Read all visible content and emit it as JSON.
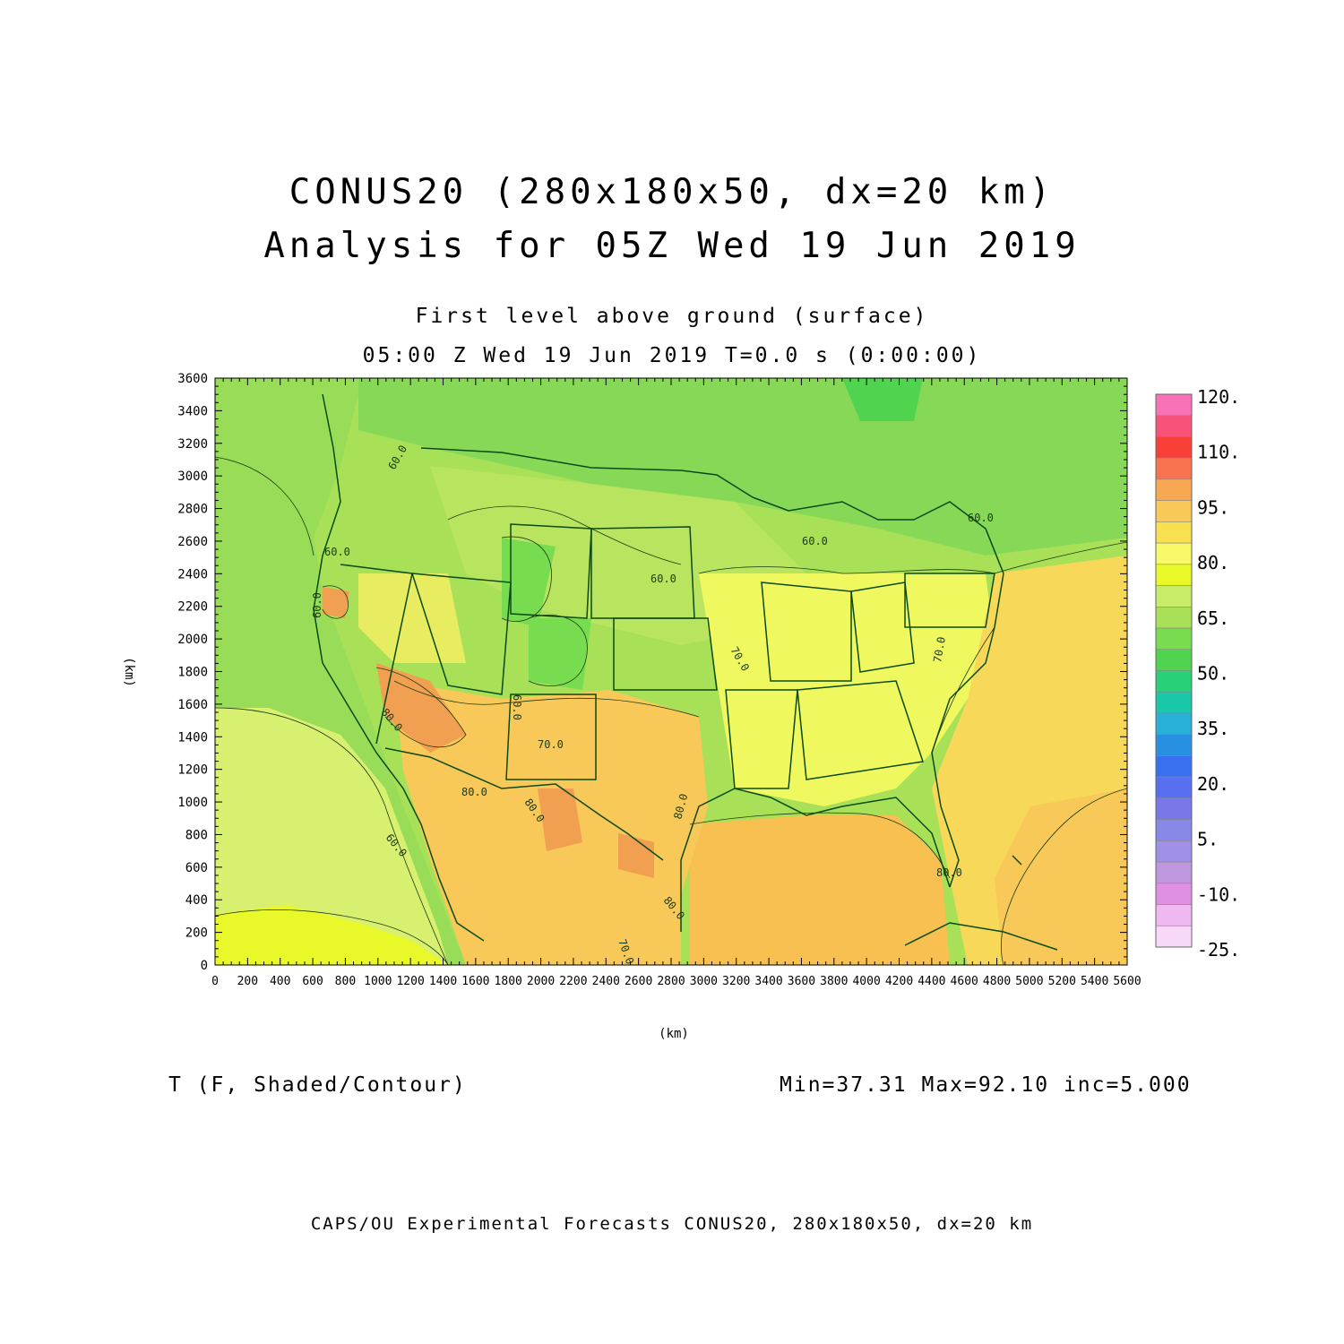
{
  "titles": {
    "line1": "CONUS20 (280x180x50, dx=20 km)",
    "line2": "Analysis for 05Z Wed 19 Jun 2019",
    "sub1": "First level above ground (surface)",
    "sub2": "05:00 Z Wed 19 Jun 2019    T=0.0 s (0:00:00)"
  },
  "variable_label": "T (F, Shaded/Contour)",
  "stats": "Min=37.31 Max=92.10 inc=5.000",
  "footer": "CAPS/OU Experimental Forecasts  CONUS20, 280x180x50, dx=20 km",
  "chart_data": {
    "type": "heatmap",
    "xlabel": "(km)",
    "ylabel": "(km)",
    "xlim": [
      0,
      5600
    ],
    "ylim": [
      0,
      3600
    ],
    "x_ticks": [
      "0",
      "200",
      "400",
      "600",
      "800",
      "1000",
      "1200",
      "1400",
      "1600",
      "1800",
      "2000",
      "2200",
      "2400",
      "2600",
      "2800",
      "3000",
      "3200",
      "3400",
      "3600",
      "3800",
      "4000",
      "4200",
      "4400",
      "4600",
      "4800",
      "5000",
      "5200",
      "5400",
      "5600"
    ],
    "y_ticks": [
      "0",
      "200",
      "400",
      "600",
      "800",
      "1000",
      "1200",
      "1400",
      "1600",
      "1800",
      "2000",
      "2200",
      "2400",
      "2600",
      "2800",
      "3000",
      "3200",
      "3400",
      "3600"
    ],
    "colorbar": {
      "labels": [
        "120.",
        "110.",
        "95.",
        "80.",
        "65.",
        "50.",
        "35.",
        "20.",
        "5.",
        "-10.",
        "-25."
      ],
      "colors": [
        "#f872b8",
        "#f8527a",
        "#f84038",
        "#f87250",
        "#f8a850",
        "#f8c858",
        "#f8e050",
        "#f8f868",
        "#e8f828",
        "#c8ec68",
        "#a8e058",
        "#78dc50",
        "#50d450",
        "#28d078",
        "#18c8a8",
        "#28b0d8",
        "#2890e0",
        "#3870f0",
        "#5870f0",
        "#7878e8",
        "#8888e8",
        "#a090e8",
        "#c098e0",
        "#e090e0",
        "#f0b8f0",
        "#f8d8f8"
      ]
    },
    "contour_labels": [
      "60.0",
      "60.0",
      "60.0",
      "60.0",
      "60.0",
      "60.0",
      "70.0",
      "70.0",
      "70.0",
      "70.0",
      "80.0",
      "80.0",
      "80.0",
      "80.0",
      "80.0",
      "80.0",
      "60.0",
      "60.0"
    ],
    "field_range": [
      37.31,
      92.1
    ],
    "contour_interval": 5.0
  }
}
